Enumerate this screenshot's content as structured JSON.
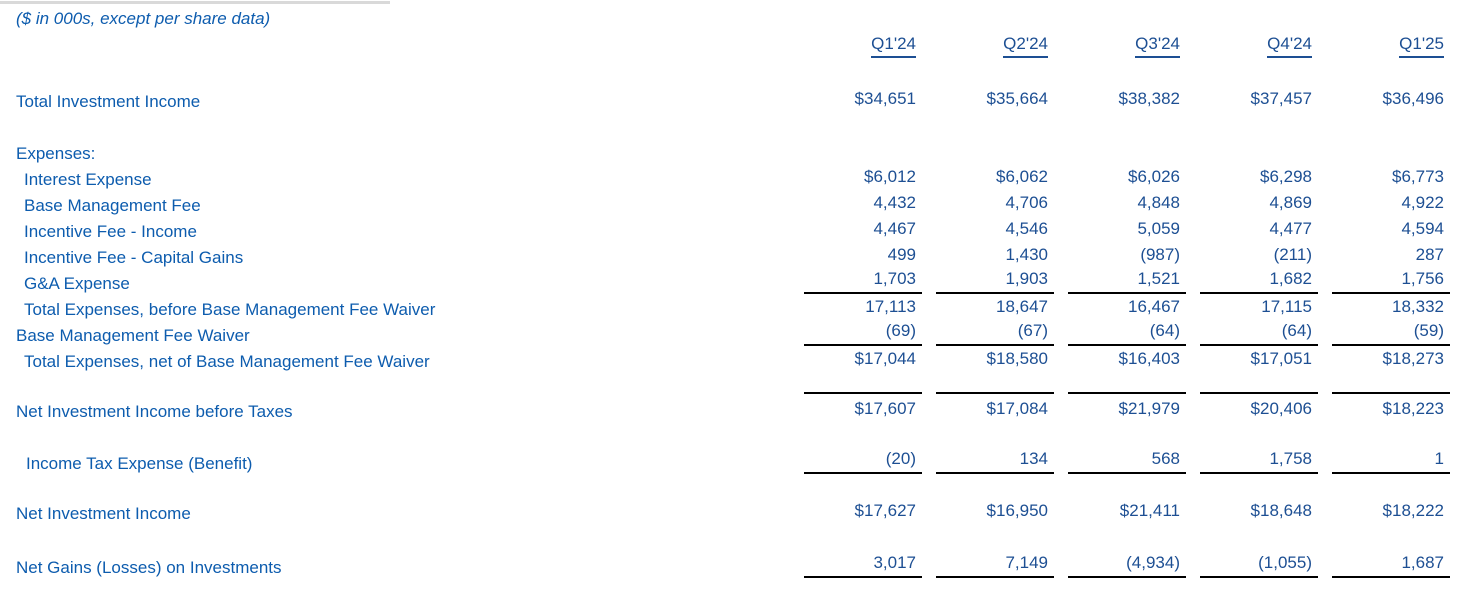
{
  "note": "($ in 000s, except per share data)",
  "colors": {
    "label_text": "#0d5cae",
    "value_text": "#1d4f93",
    "rule_line": "#000000",
    "top_divider": "#d9d9d9"
  },
  "table": {
    "columns": [
      "Q1'24",
      "Q2'24",
      "Q3'24",
      "Q4'24",
      "Q1'25"
    ],
    "rows": [
      {
        "label": "Total Investment Income",
        "values": [
          "$34,651",
          "$35,664",
          "$38,382",
          "$37,457",
          "$36,496"
        ]
      },
      {
        "label": "Expenses:",
        "values": [
          "",
          "",
          "",
          "",
          ""
        ]
      },
      {
        "label": "Interest Expense",
        "values": [
          "$6,012",
          "$6,062",
          "$6,026",
          "$6,298",
          "$6,773"
        ]
      },
      {
        "label": "Base Management Fee",
        "values": [
          "4,432",
          "4,706",
          "4,848",
          "4,869",
          "4,922"
        ]
      },
      {
        "label": "Incentive Fee - Income",
        "values": [
          "4,467",
          "4,546",
          "5,059",
          "4,477",
          "4,594"
        ]
      },
      {
        "label": "Incentive Fee - Capital Gains",
        "values": [
          "499",
          "1,430",
          "(987)",
          "(211)",
          "287"
        ]
      },
      {
        "label": "G&A Expense",
        "values": [
          "1,703",
          "1,903",
          "1,521",
          "1,682",
          "1,756"
        ]
      },
      {
        "label": "Total Expenses, before Base Management Fee Waiver",
        "values": [
          "17,113",
          "18,647",
          "16,467",
          "17,115",
          "18,332"
        ]
      },
      {
        "label": "Base Management Fee Waiver",
        "values": [
          "(69)",
          "(67)",
          "(64)",
          "(64)",
          "(59)"
        ]
      },
      {
        "label": "Total Expenses, net of Base Management Fee Waiver",
        "values": [
          "$17,044",
          "$18,580",
          "$16,403",
          "$17,051",
          "$18,273"
        ]
      },
      {
        "label": "Net Investment Income before Taxes",
        "values": [
          "$17,607",
          "$17,084",
          "$21,979",
          "$20,406",
          "$18,223"
        ]
      },
      {
        "label": "Income Tax Expense (Benefit)",
        "values": [
          "(20)",
          "134",
          "568",
          "1,758",
          "1"
        ]
      },
      {
        "label": "Net Investment Income",
        "values": [
          "$17,627",
          "$16,950",
          "$21,411",
          "$18,648",
          "$18,222"
        ]
      },
      {
        "label": "Net Gains (Losses) on Investments",
        "values": [
          "3,017",
          "7,149",
          "(4,934)",
          "(1,055)",
          "1,687"
        ]
      }
    ]
  }
}
